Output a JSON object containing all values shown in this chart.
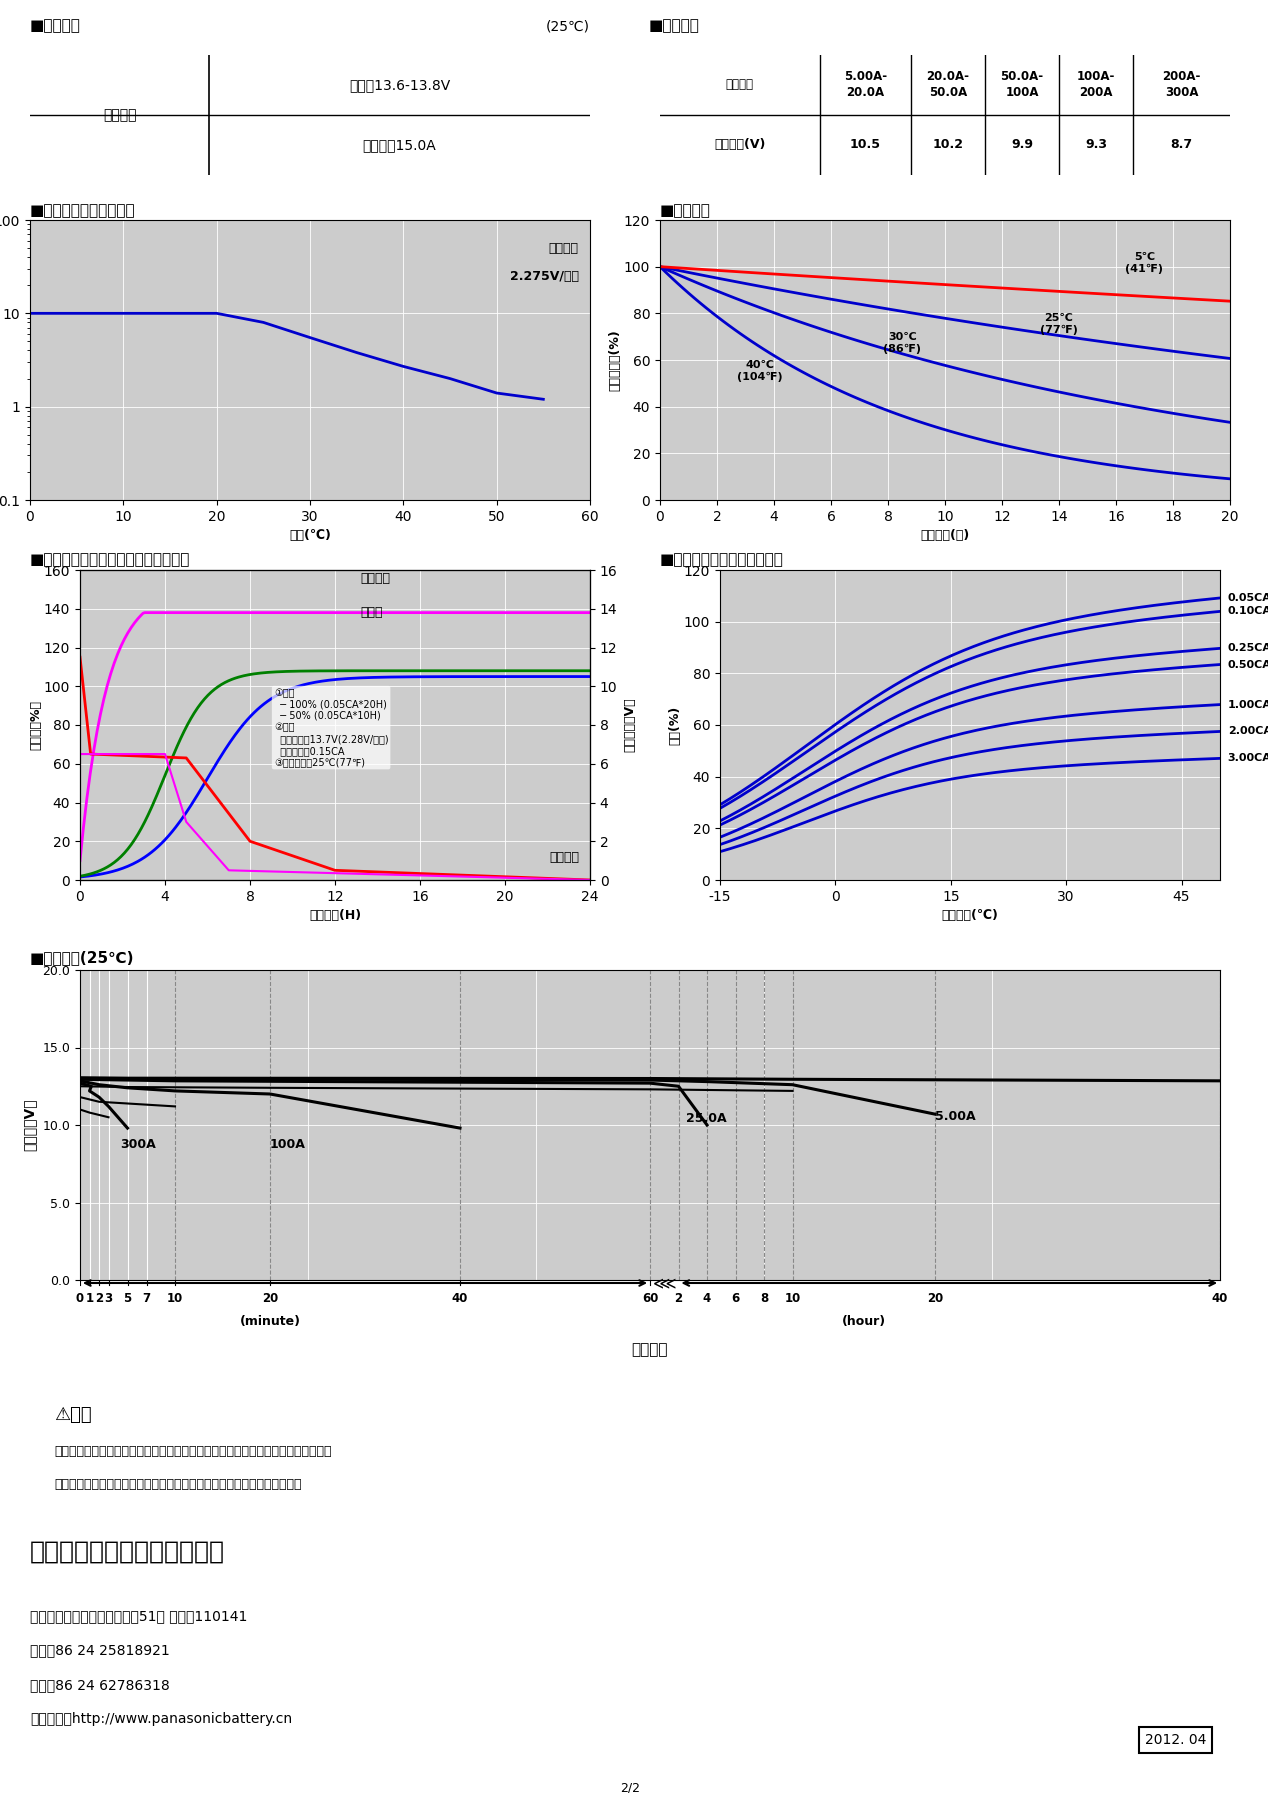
{
  "page_bg": "#ffffff",
  "title1_left": "■充电方法",
  "title1_right": "(25℃)",
  "charge_row1_left": "浮充用途",
  "charge_row1_right1": "定电压13.6-13.8V",
  "charge_row1_right2": "最大电洕15.0A",
  "title2": "■终止电压",
  "discharge_hdr": "放电电流",
  "discharge_col1a": "5.00A-",
  "discharge_col1b": "20.0A",
  "discharge_col2a": "20.0A-",
  "discharge_col2b": "50.0A",
  "discharge_col3a": "50.0A-",
  "discharge_col3b": "100A",
  "discharge_col4a": "100A-",
  "discharge_col4b": "200A",
  "discharge_col5a": "200A-",
  "discharge_col5b": "300A",
  "term_volt_label": "终止电压(V)",
  "term_volt_vals": [
    10.5,
    10.2,
    9.9,
    9.3,
    8.7
  ],
  "title3": "■不同温度下的浮充寿命",
  "title4": "■残存容量",
  "title5": "■浮充用途的定电压和限电流充电特性",
  "title6": "■容量与温度及放电电流关系",
  "title7": "■放电特性(25℃)",
  "caution_title": "⚠注意",
  "caution_text1": "蓄电池带有醉量的，请在使用蓄电池前阅读《阮拉式钒酸蓄电池的使用注意事项》。",
  "caution_text2": "如不遵循该说明使用，有时会发生电池漏液、火灾、爆炸，造成人身伤害。",
  "company": "松下蓄电池（沈阳）有限公司",
  "addr": "沈阳经济技术开发区品明领街51号 邮编：110141",
  "tel": "电话：86 24 25818921",
  "fax": "传真：86 24 62786318",
  "website": "官方网站：http://www.panasonicbattery.cn",
  "date": "2012. 04",
  "page": "2/2"
}
